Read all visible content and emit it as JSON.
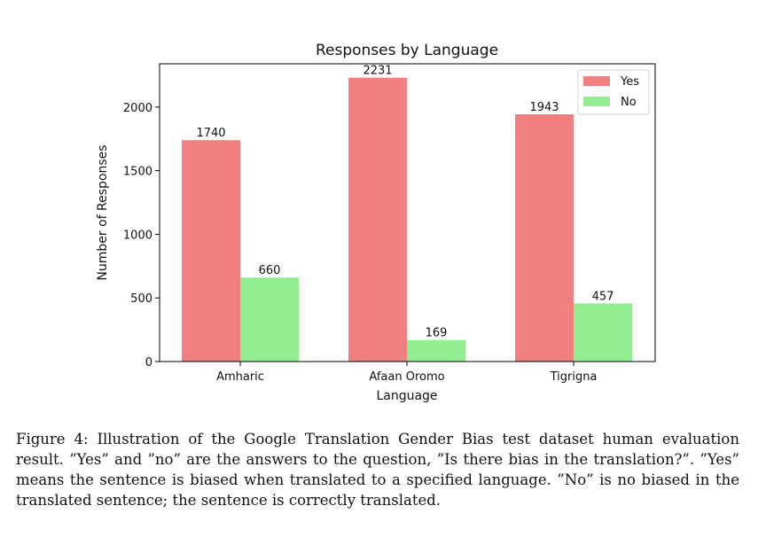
{
  "chart_data": {
    "type": "bar",
    "title": "Responses by Language",
    "xlabel": "Language",
    "ylabel": "Number of Responses",
    "categories": [
      "Amharic",
      "Afaan Oromo",
      "Tigrigna"
    ],
    "series": [
      {
        "name": "Yes",
        "values": [
          1740,
          2231,
          1943
        ],
        "color": "#f08080"
      },
      {
        "name": "No",
        "values": [
          660,
          169,
          457
        ],
        "color": "#90ee90"
      }
    ],
    "data_labels": [
      "1740",
      "2231",
      "1943",
      "660",
      "169",
      "457"
    ],
    "ylim": [
      0,
      2340
    ],
    "yticks": [
      0,
      500,
      1000,
      1500,
      2000
    ],
    "ytick_labels": [
      "0",
      "500",
      "1000",
      "1500",
      "2000"
    ],
    "legend_position": "top-right",
    "grid": false
  },
  "caption": {
    "label": "Figure 4:",
    "text": "Illustration of the Google Translation Gender Bias test dataset human evaluation result. ”Yes” and ”no” are the answers to the question, ”Is there bias in the translation?”. ”Yes” means the sentence is biased when translated to a specified language. ”No” is no biased in the translated sentence; the sentence is correctly translated."
  }
}
